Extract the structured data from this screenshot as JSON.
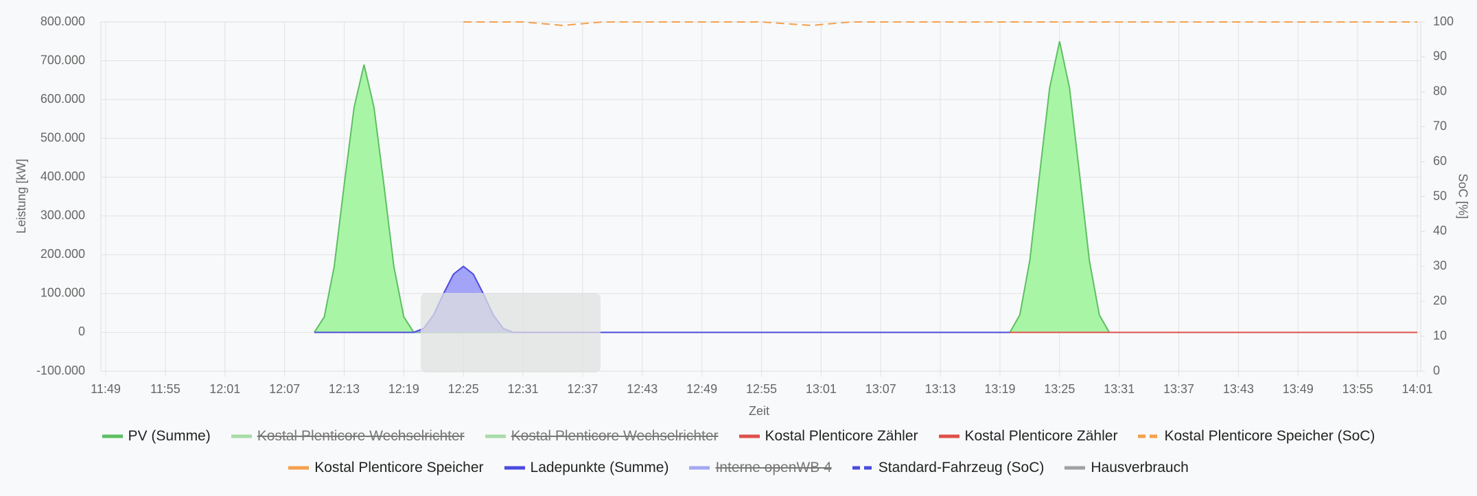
{
  "chart_data": {
    "type": "line",
    "x_label": "Zeit",
    "y_label": "Leistung [kW]",
    "y2_label": "SoC [%]",
    "xlim": [
      "11:49",
      "14:01"
    ],
    "xticks": [
      "11:49",
      "11:55",
      "12:01",
      "12:07",
      "12:13",
      "12:19",
      "12:25",
      "12:31",
      "12:37",
      "12:43",
      "12:49",
      "12:55",
      "13:01",
      "13:07",
      "13:13",
      "13:19",
      "13:25",
      "13:31",
      "13:37",
      "13:43",
      "13:49",
      "13:55",
      "14:01"
    ],
    "ylim": [
      -100000,
      800000
    ],
    "yticks": [
      {
        "value": -100000,
        "label": "-100.000"
      },
      0,
      {
        "value": 100000,
        "label": "100.000"
      },
      {
        "value": 200000,
        "label": "200.000"
      },
      {
        "value": 300000,
        "label": "300.000"
      },
      {
        "value": 400000,
        "label": "400.000"
      },
      {
        "value": 500000,
        "label": "500.000"
      },
      {
        "value": 600000,
        "label": "600.000"
      },
      {
        "value": 700000,
        "label": "700.000"
      },
      {
        "value": 800000,
        "label": "800.000"
      }
    ],
    "y2lim": [
      0,
      100
    ],
    "y2ticks": [
      0,
      10,
      20,
      30,
      40,
      50,
      60,
      70,
      80,
      90,
      100
    ],
    "grid": true,
    "series": [
      {
        "name": "PV (Summe)",
        "color": "#5cbf62",
        "fill": "#a9f5a6",
        "hidden": false,
        "dashed": false,
        "x": [
          "12:10",
          "12:11",
          "12:12",
          "12:13",
          "12:14",
          "12:15",
          "12:16",
          "12:17",
          "12:18",
          "12:19",
          "12:20",
          "13:20",
          "13:21",
          "13:22",
          "13:23",
          "13:24",
          "13:25",
          "13:26",
          "13:27",
          "13:28",
          "13:29",
          "13:30",
          "14:01"
        ],
        "values": [
          0,
          40000,
          170000,
          380000,
          580000,
          690000,
          580000,
          380000,
          170000,
          40000,
          0,
          0,
          45000,
          185000,
          410000,
          630000,
          750000,
          630000,
          410000,
          185000,
          45000,
          0,
          0
        ]
      },
      {
        "name": "Kostal Plenticore Wechselrichter",
        "color": "#a8dca8",
        "hidden": true,
        "dashed": false,
        "x": [],
        "values": []
      },
      {
        "name": "Kostal Plenticore Wechselrichter",
        "color": "#a8dca8",
        "hidden": true,
        "dashed": false,
        "x": [],
        "values": []
      },
      {
        "name": "Kostal Plenticore Zähler",
        "color": "#e0504a",
        "hidden": false,
        "dashed": false,
        "x": [
          "13:20",
          "14:01"
        ],
        "values": [
          0,
          0
        ]
      },
      {
        "name": "Kostal Plenticore Zähler",
        "color": "#e0504a",
        "hidden": false,
        "dashed": false,
        "x": [],
        "values": []
      },
      {
        "name": "Kostal Plenticore Speicher (SoC)",
        "color": "#f5a04c",
        "hidden": false,
        "dashed": true,
        "axis": "y2",
        "x": [
          "12:25",
          "12:31",
          "12:35",
          "12:39",
          "12:55",
          "13:00",
          "13:04",
          "14:01"
        ],
        "values": [
          100,
          100,
          99,
          100,
          100,
          99,
          100,
          100
        ]
      },
      {
        "name": "Kostal Plenticore Speicher",
        "color": "#f5a04c",
        "hidden": false,
        "dashed": false,
        "x": [],
        "values": []
      },
      {
        "name": "Ladepunkte (Summe)",
        "color": "#4a4ade",
        "fill": "#a3a3f7",
        "hidden": false,
        "dashed": false,
        "x": [
          "12:10",
          "12:20",
          "12:21",
          "12:22",
          "12:23",
          "12:24",
          "12:25",
          "12:26",
          "12:27",
          "12:28",
          "12:29",
          "12:30",
          "13:20"
        ],
        "values": [
          0,
          0,
          10000,
          45000,
          100000,
          150000,
          170000,
          150000,
          100000,
          45000,
          10000,
          0,
          0
        ]
      },
      {
        "name": "Interne openWB 4",
        "color": "#a3a8f2",
        "hidden": true,
        "dashed": false,
        "x": [],
        "values": []
      },
      {
        "name": "Standard-Fahrzeug (SoC)",
        "color": "#4a4ade",
        "hidden": false,
        "dashed": true,
        "axis": "y2",
        "x": [],
        "values": []
      },
      {
        "name": "Hausverbrauch",
        "color": "#a0a0a0",
        "hidden": false,
        "dashed": false,
        "x": [],
        "values": []
      }
    ]
  }
}
